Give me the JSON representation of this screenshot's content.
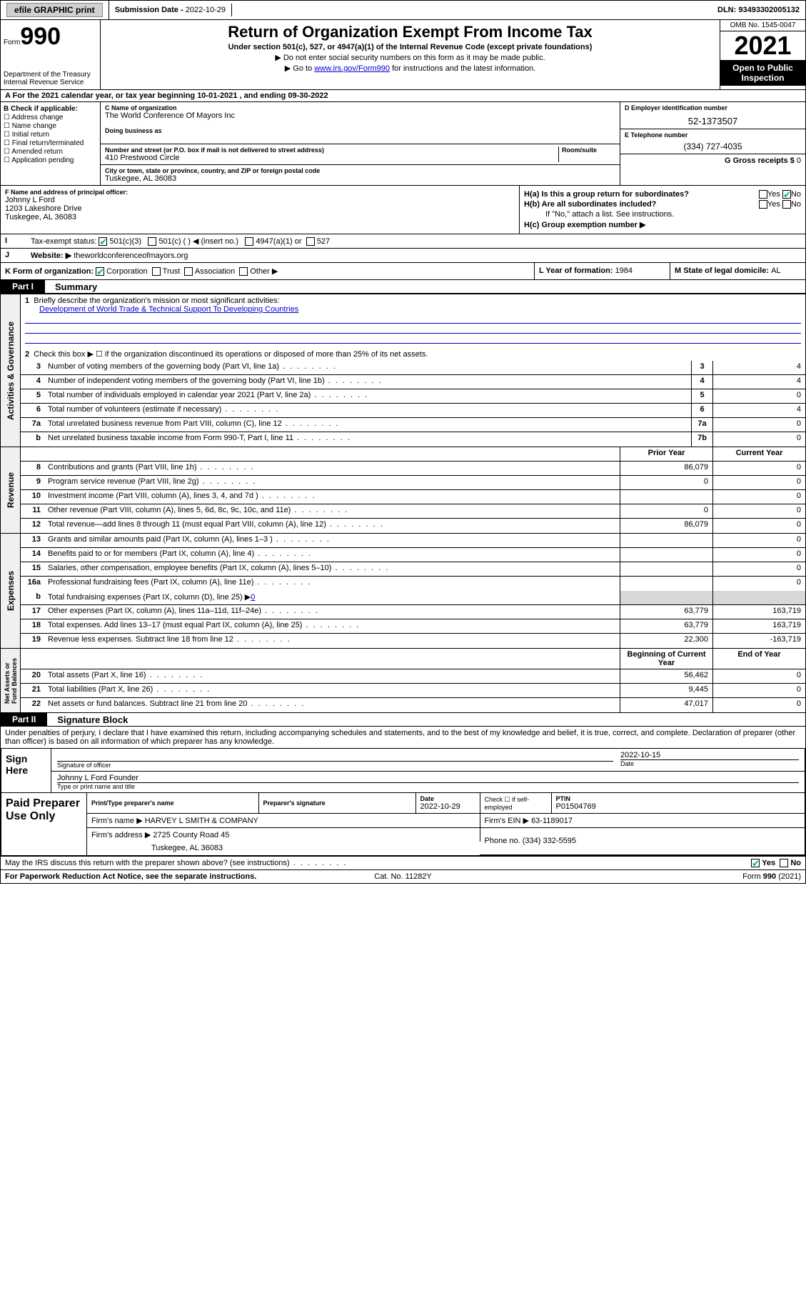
{
  "topbar": {
    "efile": "efile GRAPHIC print",
    "subdate_label": "Submission Date - ",
    "subdate": "2022-10-29",
    "dln_label": "DLN: ",
    "dln": "93493302005132"
  },
  "header": {
    "form_label": "Form",
    "form_num": "990",
    "dept": "Department of the Treasury",
    "irs": "Internal Revenue Service",
    "title": "Return of Organization Exempt From Income Tax",
    "sub1": "Under section 501(c), 527, or 4947(a)(1) of the Internal Revenue Code (except private foundations)",
    "sub2": "▶ Do not enter social security numbers on this form as it may be made public.",
    "sub3_pre": "▶ Go to ",
    "sub3_link": "www.irs.gov/Form990",
    "sub3_post": " for instructions and the latest information.",
    "omb": "OMB No. 1545-0047",
    "year": "2021",
    "otp1": "Open to Public",
    "otp2": "Inspection"
  },
  "rowA": "A For the 2021 calendar year, or tax year beginning 10-01-2021    , and ending 09-30-2022",
  "boxB": {
    "label": "B Check if applicable:",
    "items": [
      "Address change",
      "Name change",
      "Initial return",
      "Final return/terminated",
      "Amended return",
      "Application pending"
    ]
  },
  "boxC": {
    "name_lbl": "C Name of organization",
    "name": "The World Conference Of Mayors Inc",
    "dba_lbl": "Doing business as",
    "addr_lbl": "Number and street (or P.O. box if mail is not delivered to street address)",
    "room_lbl": "Room/suite",
    "addr": "410 Prestwood Circle",
    "city_lbl": "City or town, state or province, country, and ZIP or foreign postal code",
    "city": "Tuskegee, AL  36083"
  },
  "boxD": {
    "lbl": "D Employer identification number",
    "val": "52-1373507"
  },
  "boxE": {
    "lbl": "E Telephone number",
    "val": "(334) 727-4035"
  },
  "boxG": {
    "lbl": "G Gross receipts $ ",
    "val": "0"
  },
  "boxF": {
    "lbl": "F  Name and address of principal officer:",
    "name": "Johnny L Ford",
    "addr": "1203 Lakeshore Drive",
    "city": "Tuskegee, AL  36083"
  },
  "boxH": {
    "a": "H(a)  Is this a group return for subordinates?",
    "b": "H(b)  Are all subordinates included?",
    "note": "If \"No,\" attach a list. See instructions.",
    "c": "H(c)  Group exemption number ▶",
    "yes": "Yes",
    "no": "No"
  },
  "rowI": {
    "lbl": "I",
    "txt": "Tax-exempt status:",
    "c1": "501(c)(3)",
    "c2": "501(c) (  ) ◀ (insert no.)",
    "c3": "4947(a)(1) or",
    "c4": "527"
  },
  "rowJ": {
    "lbl": "J",
    "txt": "Website: ▶",
    "val": "theworldconferenceofmayors.org"
  },
  "rowK": {
    "lbl": "K Form of organization:",
    "c1": "Corporation",
    "c2": "Trust",
    "c3": "Association",
    "c4": "Other ▶"
  },
  "rowL": {
    "lbl": "L Year of formation: ",
    "val": "1984"
  },
  "rowM": {
    "lbl": "M State of legal domicile: ",
    "val": "AL"
  },
  "partI": {
    "hdr": "Part I",
    "title": "Summary"
  },
  "summary": {
    "line1": "Briefly describe the organization's mission or most significant activities:",
    "mission": "Development of World Trade & Technical Support To Developing Countries",
    "line2": "Check this box ▶ ☐  if the organization discontinued its operations or disposed of more than 25% of its net assets.",
    "rows": [
      {
        "n": "3",
        "t": "Number of voting members of the governing body (Part VI, line 1a)",
        "box": "3",
        "v": "4"
      },
      {
        "n": "4",
        "t": "Number of independent voting members of the governing body (Part VI, line 1b)",
        "box": "4",
        "v": "4"
      },
      {
        "n": "5",
        "t": "Total number of individuals employed in calendar year 2021 (Part V, line 2a)",
        "box": "5",
        "v": "0"
      },
      {
        "n": "6",
        "t": "Total number of volunteers (estimate if necessary)",
        "box": "6",
        "v": "4"
      },
      {
        "n": "7a",
        "t": "Total unrelated business revenue from Part VIII, column (C), line 12",
        "box": "7a",
        "v": "0"
      },
      {
        "n": "b",
        "t": "Net unrelated business taxable income from Form 990-T, Part I, line 11",
        "box": "7b",
        "v": "0"
      }
    ]
  },
  "revenue": {
    "hdr_prior": "Prior Year",
    "hdr_cur": "Current Year",
    "rows": [
      {
        "n": "8",
        "t": "Contributions and grants (Part VIII, line 1h)",
        "p": "86,079",
        "c": "0"
      },
      {
        "n": "9",
        "t": "Program service revenue (Part VIII, line 2g)",
        "p": "0",
        "c": "0"
      },
      {
        "n": "10",
        "t": "Investment income (Part VIII, column (A), lines 3, 4, and 7d )",
        "p": "",
        "c": "0"
      },
      {
        "n": "11",
        "t": "Other revenue (Part VIII, column (A), lines 5, 6d, 8c, 9c, 10c, and 11e)",
        "p": "0",
        "c": "0"
      },
      {
        "n": "12",
        "t": "Total revenue—add lines 8 through 11 (must equal Part VIII, column (A), line 12)",
        "p": "86,079",
        "c": "0"
      }
    ]
  },
  "expenses": {
    "rows": [
      {
        "n": "13",
        "t": "Grants and similar amounts paid (Part IX, column (A), lines 1–3 )",
        "p": "",
        "c": "0"
      },
      {
        "n": "14",
        "t": "Benefits paid to or for members (Part IX, column (A), line 4)",
        "p": "",
        "c": "0"
      },
      {
        "n": "15",
        "t": "Salaries, other compensation, employee benefits (Part IX, column (A), lines 5–10)",
        "p": "",
        "c": "0"
      },
      {
        "n": "16a",
        "t": "Professional fundraising fees (Part IX, column (A), line 11e)",
        "p": "",
        "c": "0"
      }
    ],
    "line16b_pre": "Total fundraising expenses (Part IX, column (D), line 25) ▶",
    "line16b_val": "0",
    "rows2": [
      {
        "n": "17",
        "t": "Other expenses (Part IX, column (A), lines 11a–11d, 11f–24e)",
        "p": "63,779",
        "c": "163,719"
      },
      {
        "n": "18",
        "t": "Total expenses. Add lines 13–17 (must equal Part IX, column (A), line 25)",
        "p": "63,779",
        "c": "163,719"
      },
      {
        "n": "19",
        "t": "Revenue less expenses. Subtract line 18 from line 12",
        "p": "22,300",
        "c": "-163,719"
      }
    ]
  },
  "netassets": {
    "hdr_beg": "Beginning of Current Year",
    "hdr_end": "End of Year",
    "rows": [
      {
        "n": "20",
        "t": "Total assets (Part X, line 16)",
        "p": "56,462",
        "c": "0"
      },
      {
        "n": "21",
        "t": "Total liabilities (Part X, line 26)",
        "p": "9,445",
        "c": "0"
      },
      {
        "n": "22",
        "t": "Net assets or fund balances. Subtract line 21 from line 20",
        "p": "47,017",
        "c": "0"
      }
    ]
  },
  "partII": {
    "hdr": "Part II",
    "title": "Signature Block"
  },
  "perjury": "Under penalties of perjury, I declare that I have examined this return, including accompanying schedules and statements, and to the best of my knowledge and belief, it is true, correct, and complete. Declaration of preparer (other than officer) is based on all information of which preparer has any knowledge.",
  "sign": {
    "lbl": "Sign Here",
    "sig_lbl": "Signature of officer",
    "date_lbl": "Date",
    "date": "2022-10-15",
    "name": "Johnny L Ford Founder",
    "name_lbl": "Type or print name and title"
  },
  "prep": {
    "lbl": "Paid Preparer Use Only",
    "h1": "Print/Type preparer's name",
    "h2": "Preparer's signature",
    "h3": "Date",
    "h3v": "2022-10-29",
    "h4": "Check ☐ if self-employed",
    "h5": "PTIN",
    "h5v": "P01504769",
    "firm_lbl": "Firm's name    ▶ ",
    "firm": "HARVEY L SMITH & COMPANY",
    "ein_lbl": "Firm's EIN ▶ ",
    "ein": "63-1189017",
    "addr_lbl": "Firm's address ▶ ",
    "addr": "2725 County Road 45",
    "addr2": "Tuskegee, AL  36083",
    "phone_lbl": "Phone no. ",
    "phone": "(334) 332-5595"
  },
  "may_irs": "May the IRS discuss this return with the preparer shown above? (see instructions)",
  "footer": {
    "l": "For Paperwork Reduction Act Notice, see the separate instructions.",
    "c": "Cat. No. 11282Y",
    "r": "Form 990 (2021)"
  }
}
